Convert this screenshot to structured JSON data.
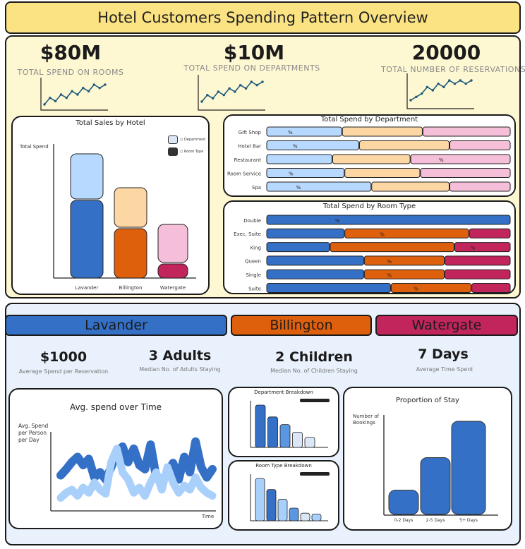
{
  "header": {
    "title": "Hotel Customers Spending Pattern Overview"
  },
  "kpis": [
    {
      "value": "$80M",
      "label": "TOTAL SPEND ON ROOMS",
      "trend": [
        2,
        4,
        3,
        5,
        4,
        6,
        5,
        7,
        6,
        8,
        7,
        8
      ]
    },
    {
      "value": "$10M",
      "label": "TOTAL SPEND ON DEPARTMENTS",
      "trend": [
        1,
        3,
        2,
        4,
        3,
        5,
        4,
        6,
        5,
        7,
        6,
        7
      ]
    },
    {
      "value": "20000",
      "label": "TOTAL NUMBER OF RESERVATIONS",
      "trend": [
        1,
        2,
        3,
        5,
        4,
        6,
        5,
        7,
        6,
        7,
        6,
        7
      ]
    }
  ],
  "sales_by_hotel": {
    "title": "Total Sales by Hotel",
    "ylabel": "Total Spend",
    "legend": [
      {
        "name": "Department",
        "color": "#b8d9ff"
      },
      {
        "name": "Room Type",
        "color": "#333333"
      }
    ],
    "hotels": [
      "Lavander",
      "Billington",
      "Watergate"
    ]
  },
  "dept_spend": {
    "title": "Total Spend by Department",
    "pct_label": "%"
  },
  "room_spend": {
    "title": "Total Spend by Room Type",
    "pct_label": "%"
  },
  "hotel_tabs": [
    {
      "name": "Lavander",
      "color": "#3470c6"
    },
    {
      "name": "Billington",
      "color": "#de5f0c"
    },
    {
      "name": "Watergate",
      "color": "#c2255c"
    }
  ],
  "detail_kpis": [
    {
      "value": "$1000",
      "label": "Average Spend per Reservation"
    },
    {
      "value": "3 Adults",
      "label": "Median No. of Adults Staying"
    },
    {
      "value": "2 Children",
      "label": "Median No. of Children Staying"
    },
    {
      "value": "7 Days",
      "label": "Average Time Spent"
    }
  ],
  "avg_spend": {
    "title": "Avg. spend over Time",
    "ylabel_lines": [
      "Avg. Spend",
      "per Person",
      "per Day"
    ],
    "xlabel": "Time"
  },
  "dept_breakdown": {
    "title": "Department Breakdown"
  },
  "room_breakdown": {
    "title": "Room Type Breakdown"
  },
  "stay": {
    "title": "Proportion of Stay",
    "ylabel_lines": [
      "Number of",
      "Bookings"
    ]
  },
  "chart_data": [
    {
      "type": "bar",
      "title": "Total Sales by Hotel",
      "ylabel": "Total Spend",
      "categories": [
        "Lavander",
        "Billington",
        "Watergate"
      ],
      "series": [
        {
          "name": "Room Type",
          "values": [
            55,
            35,
            10
          ]
        },
        {
          "name": "Department",
          "values": [
            32,
            28,
            27
          ]
        }
      ],
      "colors": {
        "Lavander": [
          "#3470c6",
          "#b8d9ff"
        ],
        "Billington": [
          "#de5f0c",
          "#fcd7a4"
        ],
        "Watergate": [
          "#c2255c",
          "#f5bfd9"
        ]
      }
    },
    {
      "type": "bar",
      "title": "Total Spend by Department",
      "orientation": "horizontal",
      "categories": [
        "Gift Shop",
        "Hotel Bar",
        "Restaurant",
        "Room Service",
        "Spa"
      ],
      "series": [
        {
          "name": "Lavander",
          "values": [
            31,
            38,
            27,
            32,
            43
          ]
        },
        {
          "name": "Billington",
          "values": [
            33,
            37,
            32,
            31,
            32
          ]
        },
        {
          "name": "Watergate",
          "values": [
            36,
            25,
            41,
            37,
            25
          ]
        }
      ],
      "colors": [
        "#b8d9ff",
        "#fcd7a4",
        "#f5bfd9"
      ],
      "pct_segment": [
        0,
        0,
        2,
        0,
        0
      ]
    },
    {
      "type": "bar",
      "title": "Total Spend by Room Type",
      "orientation": "horizontal",
      "categories": [
        "Double",
        "Exec. Suite",
        "King",
        "Queen",
        "Single",
        "Suite"
      ],
      "series": [
        {
          "name": "Lavander",
          "values": [
            100,
            32,
            26,
            40,
            40,
            51
          ]
        },
        {
          "name": "Billington",
          "values": [
            0,
            51,
            51,
            33,
            33,
            33
          ]
        },
        {
          "name": "Watergate",
          "values": [
            0,
            17,
            23,
            27,
            27,
            16
          ]
        }
      ],
      "colors": [
        "#3470c6",
        "#de5f0c",
        "#c2255c"
      ],
      "pct_segment": [
        0,
        1,
        2,
        1,
        1,
        1
      ]
    },
    {
      "type": "line",
      "title": "Avg. spend over Time",
      "xlabel": "Time",
      "series": [
        {
          "name": "dark",
          "values": [
            32,
            38,
            45,
            50,
            42,
            48,
            30,
            35,
            28,
            40,
            55,
            60,
            45,
            58,
            42,
            38,
            62,
            30,
            25,
            35,
            44,
            28,
            50,
            35,
            65,
            40,
            30,
            38
          ]
        },
        {
          "name": "light",
          "values": [
            10,
            15,
            18,
            12,
            20,
            15,
            25,
            18,
            14,
            45,
            58,
            35,
            28,
            15,
            20,
            12,
            25,
            35,
            18,
            40,
            25,
            15,
            22,
            18,
            30,
            20,
            15,
            12
          ]
        }
      ],
      "colors": [
        "#3470c6",
        "#a8d0fb"
      ]
    },
    {
      "type": "bar",
      "title": "Department Breakdown",
      "values": [
        100,
        72,
        54,
        36,
        24
      ],
      "colors": [
        "#3470c6",
        "#3470c6",
        "#5b97e0",
        "#dbe7f6",
        "#dbe7f6"
      ]
    },
    {
      "type": "bar",
      "title": "Room Type Breakdown",
      "values": [
        100,
        74,
        51,
        30,
        18,
        16
      ],
      "colors": [
        "#a8d0fb",
        "#3470c6",
        "#a8d0fb",
        "#5b97e0",
        "#dbe7f6",
        "#a8d0fb"
      ]
    },
    {
      "type": "bar",
      "title": "Proportion of Stay",
      "categories": [
        "0-2 Days",
        "2-5 Days",
        "5+ Days"
      ],
      "values": [
        26,
        61,
        100
      ],
      "colors": [
        "#3470c6",
        "#3470c6",
        "#3470c6"
      ]
    }
  ]
}
